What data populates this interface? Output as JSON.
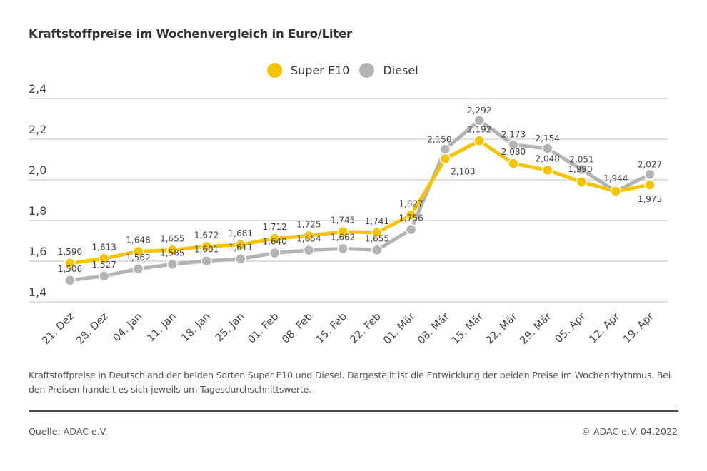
{
  "title": "Kraftstoffpreise im Wochenvergleich in Euro/Liter",
  "legend": [
    {
      "label": "Super E10",
      "color": "#f5c400"
    },
    {
      "label": "Diesel",
      "color": "#b4b4b4"
    }
  ],
  "caption": "Kraftstoffpreise in Deutschland der beiden Sorten Super E10 und Diesel. Dargestellt ist die Entwicklung der beiden Preise im Wochenrhythmus. Bei den Preisen handelt es sich jeweils um Tagesdurchschnittswerte.",
  "source": "Quelle: ADAC e.V.",
  "copyright": "© ADAC e.V. 04.2022",
  "chart_data": {
    "type": "line",
    "title": "Kraftstoffpreise im Wochenvergleich in Euro/Liter",
    "xlabel": "",
    "ylabel": "",
    "ylim": [
      1.4,
      2.4
    ],
    "yticks": [
      1.4,
      1.6,
      1.8,
      2.0,
      2.2,
      2.4
    ],
    "ytick_labels": [
      "1,4",
      "1,6",
      "1,8",
      "2,0",
      "2,2",
      "2,4"
    ],
    "grid": true,
    "legend_position": "top-center",
    "categories": [
      "21. Dez",
      "28. Dez",
      "04. Jan",
      "11. Jan",
      "18. Jan",
      "25. Jan",
      "01. Feb",
      "08. Feb",
      "15. Feb",
      "22. Feb",
      "01. Mär",
      "08. Mär",
      "15. Mär",
      "22. Mär",
      "29. Mär",
      "05. Apr",
      "12. Apr",
      "19. Apr"
    ],
    "series": [
      {
        "name": "Super E10",
        "color": "#f5c400",
        "values": [
          1.59,
          1.613,
          1.648,
          1.655,
          1.672,
          1.681,
          1.712,
          1.725,
          1.745,
          1.741,
          1.827,
          2.103,
          2.192,
          2.08,
          2.048,
          1.99,
          1.944,
          1.975
        ],
        "labels": [
          "1,590",
          "1,613",
          "1,648",
          "1,655",
          "1,672",
          "1,681",
          "1,712",
          "1,725",
          "1,745",
          "1,741",
          "1,827",
          "2,103",
          "2,192",
          "2,080",
          "2,048",
          "1,990",
          "1,944",
          "1,975"
        ]
      },
      {
        "name": "Diesel",
        "color": "#b4b4b4",
        "values": [
          1.506,
          1.527,
          1.562,
          1.585,
          1.601,
          1.611,
          1.64,
          1.654,
          1.662,
          1.655,
          1.756,
          2.15,
          2.292,
          2.173,
          2.154,
          2.051,
          1.944,
          2.027
        ],
        "labels": [
          "1,506",
          "1,527",
          "1,562",
          "1,585",
          "1,601",
          "1,611",
          "1,640",
          "1,654",
          "1,662",
          "1,655",
          "1,756",
          "2,150",
          "2,292",
          "2,173",
          "2,154",
          "2,051",
          "",
          "2,027"
        ]
      }
    ]
  }
}
